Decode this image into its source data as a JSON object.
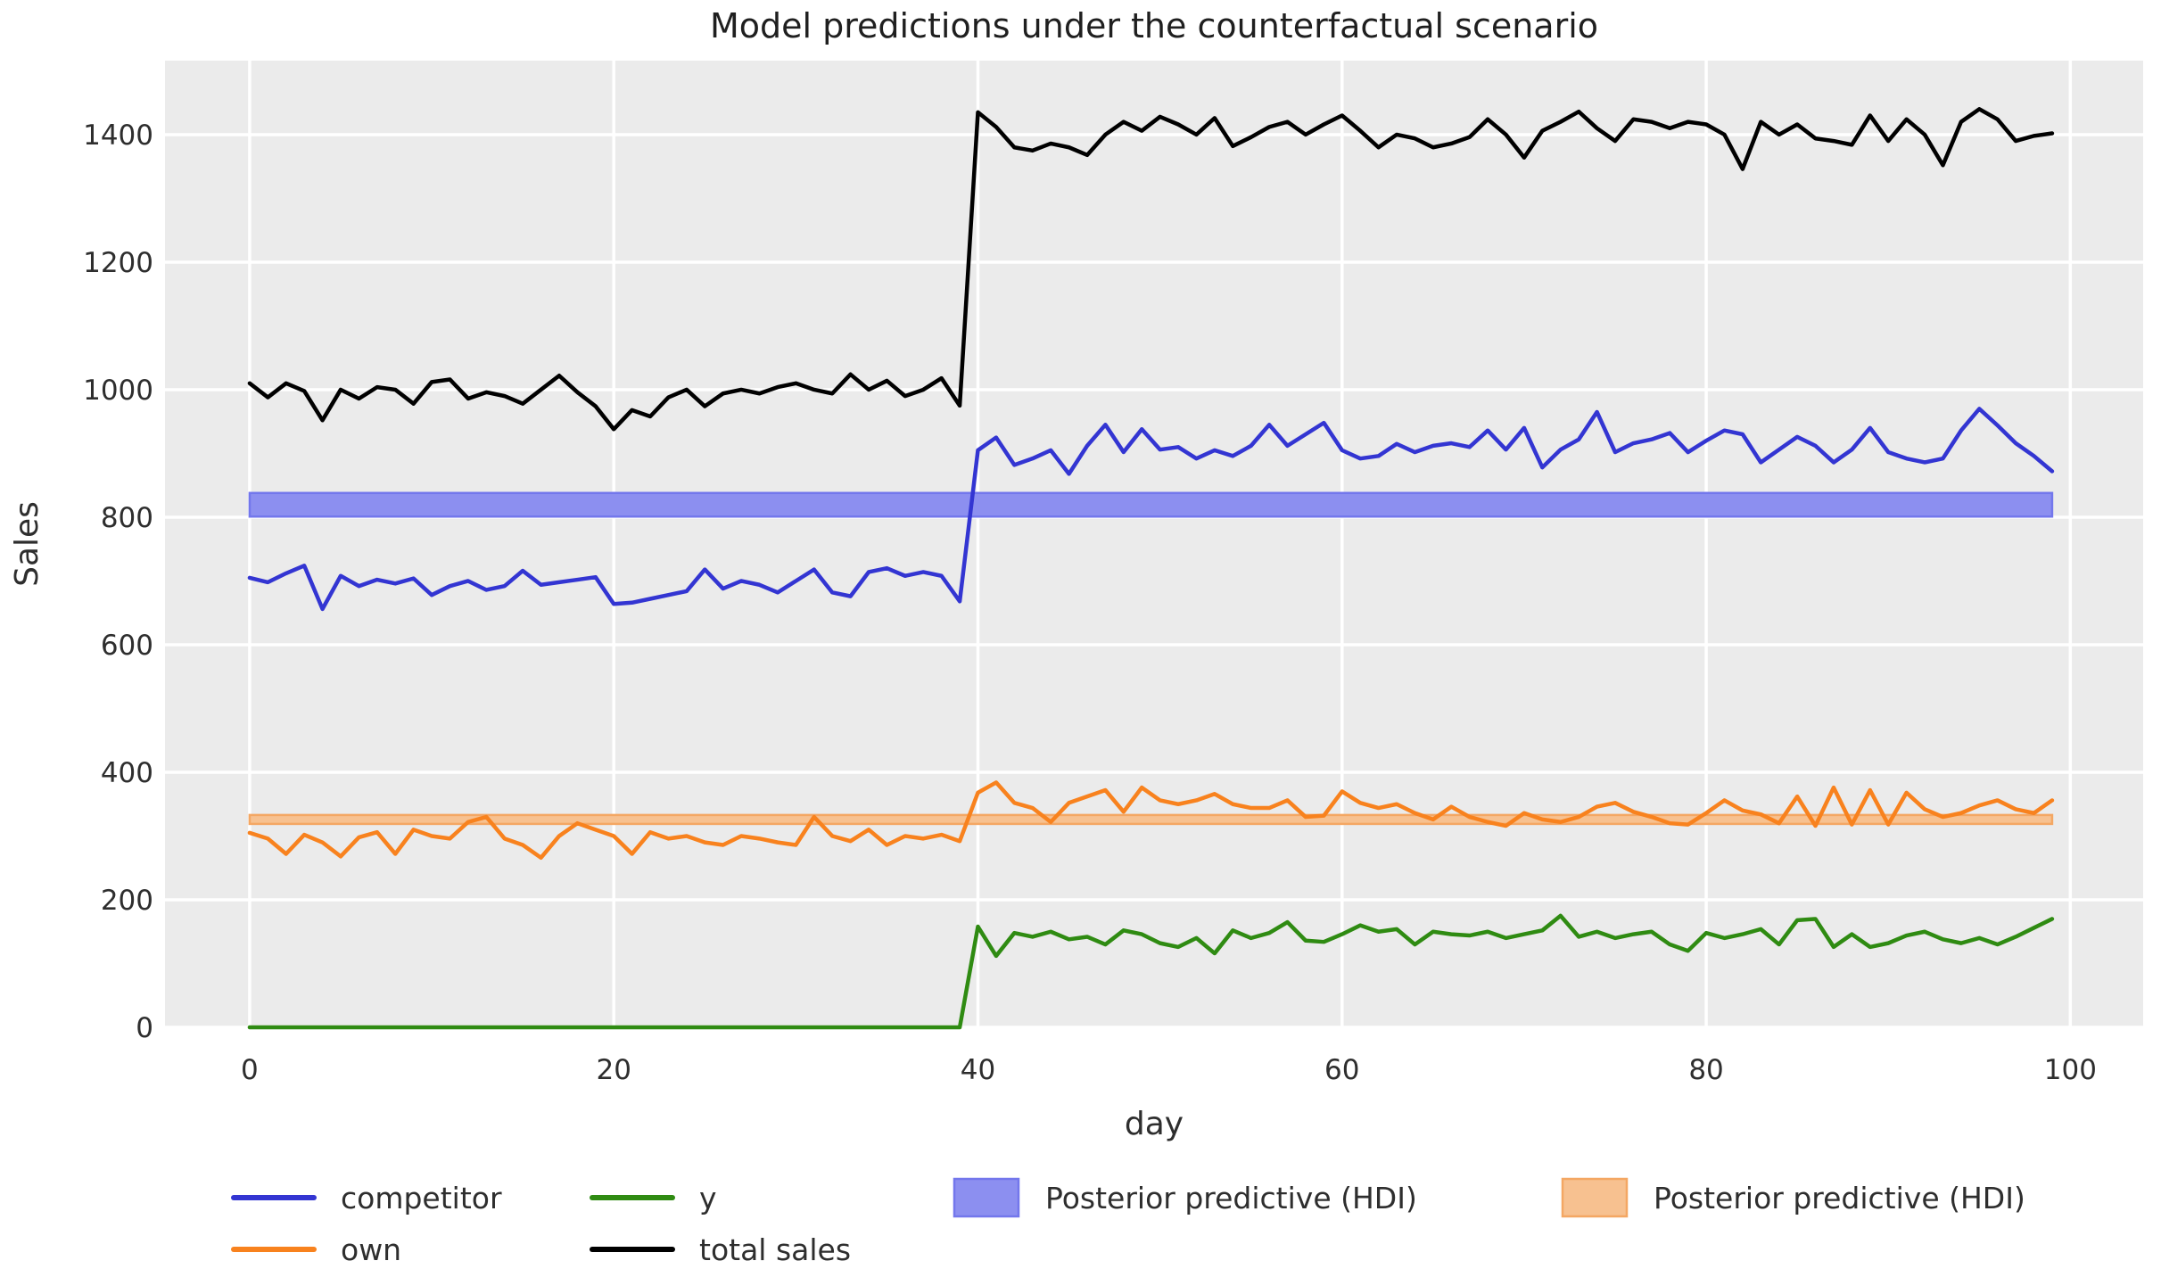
{
  "colors": {
    "figure_background": "#ffffff",
    "plot_background": "#ebebeb",
    "gridline": "#ffffff",
    "text": "#2e2e2e",
    "competitor_line": "#3335d2",
    "own_line": "#f8821e",
    "y_line": "#2f8b12",
    "total_sales_line": "#000000",
    "blue_hdi_fill": "#8c8ff0",
    "blue_hdi_edge": "#7377ec",
    "orange_hdi_fill": "#f7c190",
    "orange_hdi_edge": "#f4a763"
  },
  "chart_data": {
    "type": "line",
    "title": "Model predictions under the counterfactual scenario",
    "xlabel": "day",
    "ylabel": "Sales",
    "xlim": [
      -4.65,
      104.0
    ],
    "ylim": [
      0,
      1516
    ],
    "x_ticks": [
      0,
      20,
      40,
      60,
      80,
      100
    ],
    "y_ticks": [
      0,
      200,
      400,
      600,
      800,
      1000,
      1200,
      1400
    ],
    "grid": true,
    "legend_position": "below-axis",
    "x": [
      0,
      1,
      2,
      3,
      4,
      5,
      6,
      7,
      8,
      9,
      10,
      11,
      12,
      13,
      14,
      15,
      16,
      17,
      18,
      19,
      20,
      21,
      22,
      23,
      24,
      25,
      26,
      27,
      28,
      29,
      30,
      31,
      32,
      33,
      34,
      35,
      36,
      37,
      38,
      39,
      40,
      41,
      42,
      43,
      44,
      45,
      46,
      47,
      48,
      49,
      50,
      51,
      52,
      53,
      54,
      55,
      56,
      57,
      58,
      59,
      60,
      61,
      62,
      63,
      64,
      65,
      66,
      67,
      68,
      69,
      70,
      71,
      72,
      73,
      74,
      75,
      76,
      77,
      78,
      79,
      80,
      81,
      82,
      83,
      84,
      85,
      86,
      87,
      88,
      89,
      90,
      91,
      92,
      93,
      94,
      95,
      96,
      97,
      98,
      99
    ],
    "series": [
      {
        "name": "competitor",
        "color_key": "competitor_line",
        "values": [
          705,
          698,
          712,
          724,
          656,
          708,
          692,
          702,
          696,
          704,
          678,
          692,
          700,
          686,
          692,
          716,
          694,
          698,
          702,
          706,
          664,
          666,
          672,
          678,
          684,
          718,
          688,
          700,
          694,
          682,
          700,
          718,
          682,
          676,
          714,
          720,
          708,
          714,
          708,
          668,
          905,
          925,
          882,
          892,
          905,
          868,
          912,
          945,
          902,
          938,
          906,
          910,
          892,
          905,
          896,
          912,
          945,
          912,
          930,
          948,
          905,
          892,
          896,
          915,
          902,
          912,
          916,
          910,
          936,
          906,
          940,
          878,
          906,
          922,
          965,
          902,
          916,
          922,
          932,
          902,
          920,
          936,
          930,
          886,
          906,
          926,
          912,
          886,
          906,
          940,
          902,
          892,
          886,
          892,
          936,
          970,
          944,
          916,
          896,
          872
        ]
      },
      {
        "name": "own",
        "color_key": "own_line",
        "values": [
          305,
          296,
          272,
          302,
          290,
          268,
          298,
          306,
          272,
          310,
          300,
          296,
          322,
          330,
          296,
          286,
          266,
          300,
          320,
          310,
          300,
          272,
          306,
          296,
          300,
          290,
          286,
          300,
          296,
          290,
          286,
          330,
          300,
          292,
          310,
          286,
          300,
          296,
          302,
          292,
          368,
          384,
          352,
          344,
          322,
          352,
          362,
          372,
          338,
          376,
          356,
          350,
          356,
          366,
          350,
          344,
          344,
          356,
          330,
          332,
          370,
          352,
          344,
          350,
          336,
          326,
          346,
          330,
          322,
          316,
          336,
          326,
          322,
          330,
          346,
          352,
          338,
          330,
          320,
          318,
          336,
          356,
          340,
          334,
          320,
          362,
          316,
          376,
          318,
          372,
          318,
          368,
          342,
          330,
          336,
          348,
          356,
          342,
          336,
          356
        ]
      },
      {
        "name": "y",
        "color_key": "y_line",
        "values": [
          0,
          0,
          0,
          0,
          0,
          0,
          0,
          0,
          0,
          0,
          0,
          0,
          0,
          0,
          0,
          0,
          0,
          0,
          0,
          0,
          0,
          0,
          0,
          0,
          0,
          0,
          0,
          0,
          0,
          0,
          0,
          0,
          0,
          0,
          0,
          0,
          0,
          0,
          0,
          0,
          158,
          112,
          148,
          142,
          150,
          138,
          142,
          130,
          152,
          146,
          132,
          126,
          140,
          116,
          152,
          140,
          148,
          165,
          136,
          134,
          146,
          160,
          150,
          154,
          130,
          150,
          146,
          144,
          150,
          140,
          146,
          152,
          175,
          142,
          150,
          140,
          146,
          150,
          130,
          120,
          148,
          140,
          146,
          154,
          130,
          168,
          170,
          126,
          146,
          126,
          132,
          144,
          150,
          138,
          132,
          140,
          130,
          142,
          156,
          170
        ]
      },
      {
        "name": "total sales",
        "color_key": "total_sales_line",
        "values": [
          1010,
          988,
          1010,
          998,
          952,
          1000,
          986,
          1004,
          1000,
          978,
          1012,
          1016,
          986,
          996,
          990,
          978,
          1000,
          1022,
          996,
          974,
          938,
          968,
          958,
          988,
          1000,
          974,
          994,
          1000,
          994,
          1004,
          1010,
          1000,
          994,
          1024,
          1000,
          1014,
          990,
          1000,
          1018,
          975,
          1435,
          1412,
          1380,
          1375,
          1386,
          1380,
          1368,
          1400,
          1420,
          1406,
          1428,
          1416,
          1400,
          1426,
          1382,
          1396,
          1412,
          1420,
          1400,
          1416,
          1430,
          1406,
          1380,
          1400,
          1394,
          1380,
          1386,
          1396,
          1424,
          1400,
          1364,
          1406,
          1420,
          1436,
          1410,
          1390,
          1424,
          1420,
          1410,
          1420,
          1416,
          1400,
          1346,
          1420,
          1400,
          1416,
          1394,
          1390,
          1384,
          1430,
          1390,
          1424,
          1400,
          1352,
          1420,
          1440,
          1424,
          1390,
          1398,
          1402
        ]
      }
    ],
    "bands": [
      {
        "name": "Posterior predictive (HDI)",
        "fill_key": "blue_hdi_fill",
        "edge_key": "blue_hdi_edge",
        "x_start": 0,
        "x_end": 99,
        "y_low": 801,
        "y_high": 838
      },
      {
        "name": "Posterior predictive (HDI)",
        "fill_key": "orange_hdi_fill",
        "edge_key": "orange_hdi_edge",
        "x_start": 0,
        "x_end": 99,
        "y_low": 319,
        "y_high": 333
      }
    ],
    "legend": {
      "entries": [
        {
          "label": "competitor",
          "type": "line",
          "color_key": "competitor_line"
        },
        {
          "label": "own",
          "type": "line",
          "color_key": "own_line"
        },
        {
          "label": "y",
          "type": "line",
          "color_key": "y_line"
        },
        {
          "label": "total sales",
          "type": "line",
          "color_key": "total_sales_line"
        },
        {
          "label": "Posterior predictive (HDI)",
          "type": "patch",
          "fill_key": "blue_hdi_fill",
          "edge_key": "blue_hdi_edge"
        },
        {
          "label": "Posterior predictive (HDI)",
          "type": "patch",
          "fill_key": "orange_hdi_fill",
          "edge_key": "orange_hdi_edge"
        }
      ]
    }
  }
}
